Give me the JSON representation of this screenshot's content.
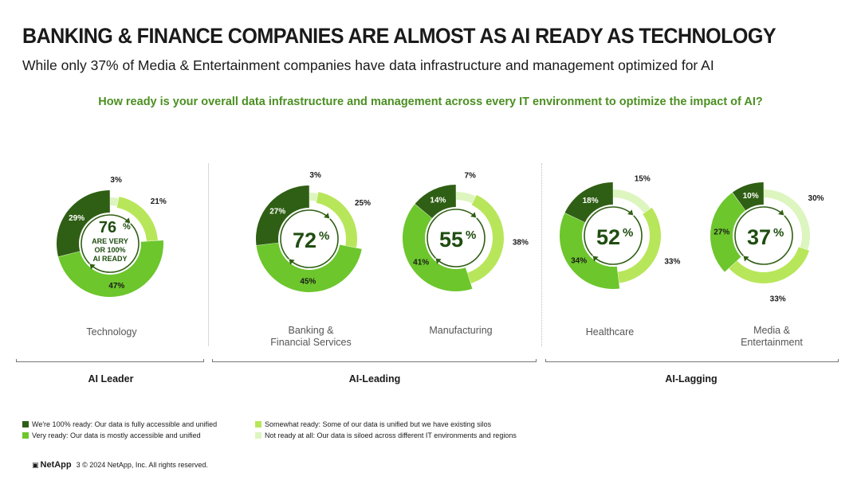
{
  "header": {
    "title": "BANKING & FINANCE COMPANIES ARE ALMOST AS AI READY AS TECHNOLOGY",
    "subtitle": "While only 37% of Media & Entertainment companies have data infrastructure and management optimized for AI",
    "question": "How ready is your overall data infrastructure and management across every IT environment to optimize the impact of AI?"
  },
  "colors": {
    "fully_ready": "#2f5f14",
    "very_ready": "#6cc62c",
    "somewhat_ready": "#b8e65a",
    "not_ready": "#ddf5bf",
    "center_text": "#1f4d10",
    "question_text": "#4b8f21"
  },
  "chart_data": {
    "type": "pie",
    "variant": "donut",
    "series_order": [
      "fully_ready",
      "very_ready",
      "somewhat_ready",
      "not_ready"
    ],
    "segment_order_clockwise_from_top": [
      "not_ready",
      "somewhat_ready",
      "very_ready",
      "fully_ready"
    ],
    "charts": [
      {
        "category": "Technology",
        "group": "AI Leader",
        "ready_total": "76",
        "center_note": [
          "ARE VERY",
          "OR 100%",
          "AI READY"
        ],
        "values": {
          "fully_ready": 29,
          "very_ready": 47,
          "somewhat_ready": 21,
          "not_ready": 3
        }
      },
      {
        "category": "Banking &\nFinancial Services",
        "group": "AI-Leading",
        "ready_total": "72",
        "values": {
          "fully_ready": 27,
          "very_ready": 45,
          "somewhat_ready": 25,
          "not_ready": 3
        }
      },
      {
        "category": "Manufacturing",
        "group": "AI-Leading",
        "ready_total": "55",
        "values": {
          "fully_ready": 14,
          "very_ready": 41,
          "somewhat_ready": 38,
          "not_ready": 7
        }
      },
      {
        "category": "Healthcare",
        "group": "AI-Lagging",
        "ready_total": "52",
        "values": {
          "fully_ready": 18,
          "very_ready": 34,
          "somewhat_ready": 33,
          "not_ready": 15
        }
      },
      {
        "category": "Media &\nEntertainment",
        "group": "AI-Lagging",
        "ready_total": "37",
        "values": {
          "fully_ready": 10,
          "very_ready": 27,
          "somewhat_ready": 33,
          "not_ready": 30
        }
      }
    ],
    "groups": [
      "AI Leader",
      "AI-Leading",
      "AI-Lagging"
    ],
    "legend": [
      {
        "key": "fully_ready",
        "label": "We're 100% ready: Our data is fully accessible and unified"
      },
      {
        "key": "very_ready",
        "label": "Very ready: Our data is mostly accessible and unified"
      },
      {
        "key": "somewhat_ready",
        "label": "Somewhat ready: Some of our data is unified but we have existing silos"
      },
      {
        "key": "not_ready",
        "label": "Not ready at all: Our data is siloed across different IT environments and regions"
      }
    ]
  },
  "footer": {
    "logo": "NetApp",
    "page": "3",
    "copyright": "© 2024 NetApp, Inc. All rights reserved."
  }
}
